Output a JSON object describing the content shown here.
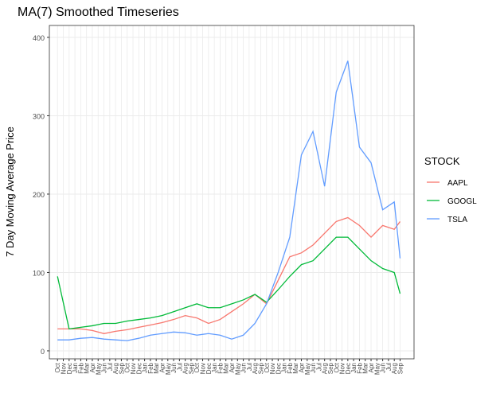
{
  "chart_data": {
    "type": "line",
    "title": "MA(7) Smoothed Timeseries",
    "y_label": "7 Day Moving Average Price",
    "legend_title": "STOCK",
    "legend": "right",
    "grid": true,
    "x": [
      0,
      2,
      4,
      6,
      8,
      10,
      12,
      14,
      16,
      18,
      20,
      22,
      24,
      26,
      28,
      30,
      32,
      34,
      36,
      38,
      40,
      42,
      44,
      46,
      48,
      50,
      52,
      54,
      56,
      58,
      59
    ],
    "series": [
      {
        "name": "AAPL",
        "color": "#F8766D",
        "values": [
          28,
          28,
          28,
          26,
          22,
          25,
          27,
          30,
          33,
          36,
          40,
          45,
          42,
          35,
          40,
          50,
          60,
          72,
          60,
          90,
          120,
          125,
          135,
          150,
          165,
          170,
          160,
          145,
          160,
          155,
          165
        ]
      },
      {
        "name": "GOOGL",
        "color": "#00BA38",
        "values": [
          95,
          28,
          30,
          32,
          35,
          35,
          38,
          40,
          42,
          45,
          50,
          55,
          60,
          55,
          55,
          60,
          65,
          72,
          62,
          78,
          95,
          110,
          115,
          130,
          145,
          145,
          130,
          115,
          105,
          100,
          73
        ]
      },
      {
        "name": "TSLA",
        "color": "#619CFF",
        "values": [
          14,
          14,
          16,
          17,
          15,
          14,
          13,
          16,
          20,
          22,
          24,
          23,
          20,
          22,
          20,
          15,
          20,
          35,
          60,
          100,
          145,
          250,
          280,
          210,
          330,
          370,
          260,
          240,
          180,
          190,
          118
        ]
      }
    ],
    "xlim": [
      -1.4,
      61.4
    ],
    "ylim": [
      -10.2,
      415.2
    ],
    "yticks": [
      0,
      100,
      200,
      300,
      400
    ],
    "xticks": [
      {
        "value": 0,
        "label": "Oct"
      },
      {
        "value": 1,
        "label": "Nov"
      },
      {
        "value": 2,
        "label": "Dec"
      },
      {
        "value": 3,
        "label": "Jan"
      },
      {
        "value": 4,
        "label": "Feb"
      },
      {
        "value": 5,
        "label": "Mar"
      },
      {
        "value": 6,
        "label": "Apr"
      },
      {
        "value": 7,
        "label": "May"
      },
      {
        "value": 8,
        "label": "Jun"
      },
      {
        "value": 9,
        "label": "Jul"
      },
      {
        "value": 10,
        "label": "Aug"
      },
      {
        "value": 11,
        "label": "Sep"
      },
      {
        "value": 12,
        "label": "Oct"
      },
      {
        "value": 13,
        "label": "Nov"
      },
      {
        "value": 14,
        "label": "Dec"
      },
      {
        "value": 15,
        "label": "Jan"
      },
      {
        "value": 16,
        "label": "Feb"
      },
      {
        "value": 17,
        "label": "Mar"
      },
      {
        "value": 18,
        "label": "Apr"
      },
      {
        "value": 19,
        "label": "May"
      },
      {
        "value": 20,
        "label": "Jun"
      },
      {
        "value": 21,
        "label": "Jul"
      },
      {
        "value": 22,
        "label": "Aug"
      },
      {
        "value": 23,
        "label": "Sep"
      },
      {
        "value": 24,
        "label": "Oct"
      },
      {
        "value": 25,
        "label": "Nov"
      },
      {
        "value": 26,
        "label": "Dec"
      },
      {
        "value": 27,
        "label": "Jan"
      },
      {
        "value": 28,
        "label": "Feb"
      },
      {
        "value": 29,
        "label": "Mar"
      },
      {
        "value": 30,
        "label": "Apr"
      },
      {
        "value": 31,
        "label": "May"
      },
      {
        "value": 32,
        "label": "Jun"
      },
      {
        "value": 33,
        "label": "Jul"
      },
      {
        "value": 34,
        "label": "Aug"
      },
      {
        "value": 35,
        "label": "Sep"
      },
      {
        "value": 36,
        "label": "Oct"
      },
      {
        "value": 37,
        "label": "Nov"
      },
      {
        "value": 38,
        "label": "Dec"
      },
      {
        "value": 39,
        "label": "Jan"
      },
      {
        "value": 40,
        "label": "Feb"
      },
      {
        "value": 41,
        "label": "Mar"
      },
      {
        "value": 42,
        "label": "Apr"
      },
      {
        "value": 43,
        "label": "May"
      },
      {
        "value": 44,
        "label": "Jun"
      },
      {
        "value": 45,
        "label": "Jul"
      },
      {
        "value": 46,
        "label": "Aug"
      },
      {
        "value": 47,
        "label": "Sep"
      },
      {
        "value": 48,
        "label": "Oct"
      },
      {
        "value": 49,
        "label": "Nov"
      },
      {
        "value": 50,
        "label": "Dec"
      },
      {
        "value": 51,
        "label": "Jan"
      },
      {
        "value": 52,
        "label": "Feb"
      },
      {
        "value": 53,
        "label": "Mar"
      },
      {
        "value": 54,
        "label": "Apr"
      },
      {
        "value": 55,
        "label": "May"
      },
      {
        "value": 56,
        "label": "Jun"
      },
      {
        "value": 57,
        "label": "Jul"
      },
      {
        "value": 58,
        "label": "Aug"
      },
      {
        "value": 59,
        "label": "Sep"
      }
    ]
  }
}
